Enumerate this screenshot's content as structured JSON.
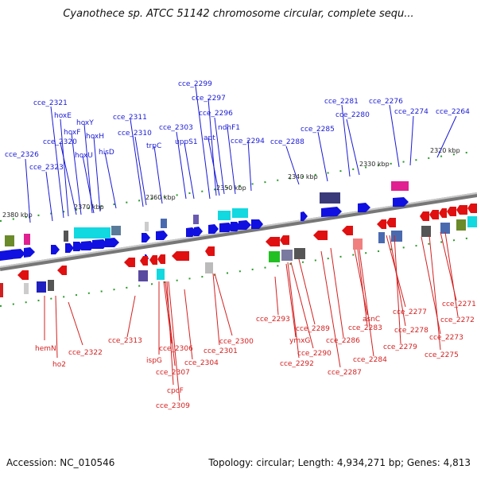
{
  "title": "Cyanothece sp. ATCC 51142 chromosome circular, complete sequ...",
  "footer": {
    "accession": "Accession: NC_010546",
    "summary": "Topology: circular; Length: 4,934,271 bp; Genes: 4,813"
  },
  "scale_labels": [
    "2380 kbp",
    "2370 kbp",
    "2360 kbp",
    "2350 kbp",
    "2340 kbp",
    "2330 kbp",
    "2320 kbp"
  ],
  "genes_top": [
    "cce_2326",
    "cce_2323",
    "cce_2321",
    "hoxE",
    "cce_2320",
    "hoxF",
    "hoxY",
    "hoxU",
    "hoxH",
    "hisD",
    "cce_2311",
    "cce_2310",
    "trpC",
    "cce_2303",
    "uppS1",
    "cce_2299",
    "cce_2297",
    "cce_2296",
    "apt",
    "ndhF1",
    "cce_2294",
    "cce_2288",
    "cce_2285",
    "cce_2281",
    "cce_2280",
    "cce_2276",
    "cce_2274",
    "cce_2264"
  ],
  "genes_bottom": [
    "hemN",
    "ho2",
    "cce_2322",
    "cce_2313",
    "ispG",
    "cce_2306",
    "cce_2307",
    "cpcF",
    "cce_2309",
    "cce_2304",
    "cce_2301",
    "cce_2300",
    "cce_2293",
    "ymxG",
    "cce_2292",
    "cce_2290",
    "cce_2289",
    "cce_2287",
    "cce_2286",
    "asnC",
    "cce_2283",
    "cce_2284",
    "cce_2277",
    "cce_2278",
    "cce_2279",
    "cce_2273",
    "cce_2275",
    "cce_2271",
    "cce_2272"
  ],
  "colors": {
    "forward": "#1010e0",
    "reverse": "#e01010",
    "label_forward": "#1a1ad6",
    "label_reverse": "#d42020",
    "backbone": "#888888",
    "tick": "#2a9a2a"
  }
}
